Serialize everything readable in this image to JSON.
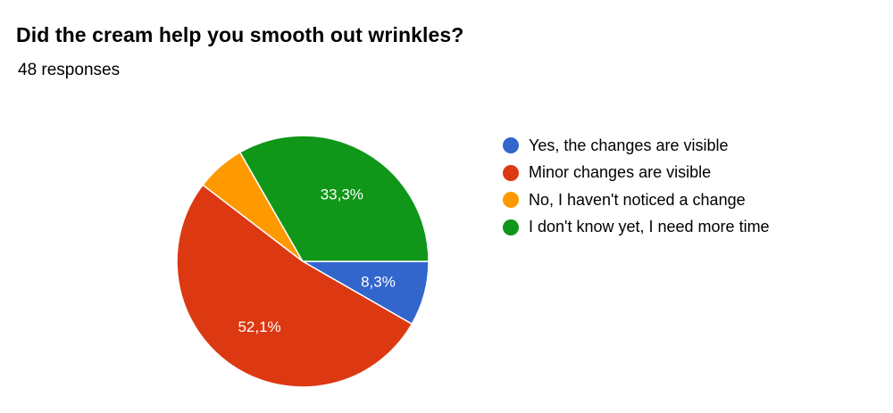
{
  "header": {
    "title": "Did the cream help you smooth out wrinkles?",
    "responses": "48 responses"
  },
  "chart_data": {
    "type": "pie",
    "categories": [
      "Yes, the changes are visible",
      "Minor changes are visible",
      "No, I haven't noticed a change",
      "I don't know yet, I need more time"
    ],
    "values": [
      8.3,
      52.1,
      6.3,
      33.3
    ],
    "labels": [
      "8,3%",
      "52,1%",
      "",
      "33,3%"
    ],
    "colors": [
      "#3366cc",
      "#dc3912",
      "#ff9900",
      "#109618"
    ],
    "legend": "right",
    "start": "3 o'clock, clockwise"
  }
}
